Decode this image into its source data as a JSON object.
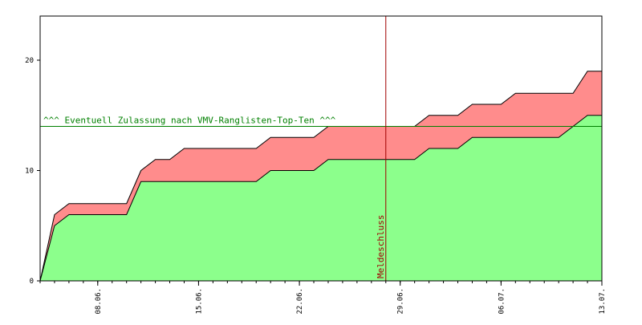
{
  "chart_data": {
    "type": "area",
    "stacked": true,
    "grid": false,
    "x_axis": {
      "start": "2022-06-04",
      "end": "2022-07-13",
      "tick_labels": [
        "08.06.",
        "15.06.",
        "22.06.",
        "29.06.",
        "06.07.",
        "13.07."
      ],
      "tick_dates": [
        "2022-06-08",
        "2022-06-15",
        "2022-06-22",
        "2022-06-29",
        "2022-07-06",
        "2022-07-13"
      ]
    },
    "y_axis": {
      "min": 0,
      "max": 24,
      "tick_labels": [
        "0",
        "10",
        "20"
      ],
      "tick_values": [
        0,
        10,
        20
      ]
    },
    "series": [
      {
        "color": "#8cff8c",
        "points": [
          [
            "2022-06-04",
            0
          ],
          [
            "2022-06-05",
            5
          ],
          [
            "2022-06-06",
            6
          ],
          [
            "2022-06-07",
            6
          ],
          [
            "2022-06-08",
            6
          ],
          [
            "2022-06-09",
            6
          ],
          [
            "2022-06-10",
            6
          ],
          [
            "2022-06-11",
            9
          ],
          [
            "2022-06-12",
            9
          ],
          [
            "2022-06-13",
            9
          ],
          [
            "2022-06-14",
            9
          ],
          [
            "2022-06-15",
            9
          ],
          [
            "2022-06-16",
            9
          ],
          [
            "2022-06-17",
            9
          ],
          [
            "2022-06-18",
            9
          ],
          [
            "2022-06-19",
            9
          ],
          [
            "2022-06-20",
            10
          ],
          [
            "2022-06-21",
            10
          ],
          [
            "2022-06-22",
            10
          ],
          [
            "2022-06-23",
            10
          ],
          [
            "2022-06-24",
            11
          ],
          [
            "2022-06-25",
            11
          ],
          [
            "2022-06-26",
            11
          ],
          [
            "2022-06-27",
            11
          ],
          [
            "2022-06-28",
            11
          ],
          [
            "2022-06-29",
            11
          ],
          [
            "2022-06-30",
            11
          ],
          [
            "2022-07-01",
            12
          ],
          [
            "2022-07-02",
            12
          ],
          [
            "2022-07-03",
            12
          ],
          [
            "2022-07-04",
            13
          ],
          [
            "2022-07-05",
            13
          ],
          [
            "2022-07-06",
            13
          ],
          [
            "2022-07-07",
            13
          ],
          [
            "2022-07-08",
            13
          ],
          [
            "2022-07-09",
            13
          ],
          [
            "2022-07-10",
            13
          ],
          [
            "2022-07-11",
            14
          ],
          [
            "2022-07-12",
            15
          ],
          [
            "2022-07-13",
            15
          ]
        ]
      },
      {
        "color": "#ff8c8c",
        "points": [
          [
            "2022-06-04",
            0
          ],
          [
            "2022-06-05",
            6
          ],
          [
            "2022-06-06",
            7
          ],
          [
            "2022-06-07",
            7
          ],
          [
            "2022-06-08",
            7
          ],
          [
            "2022-06-09",
            7
          ],
          [
            "2022-06-10",
            7
          ],
          [
            "2022-06-11",
            10
          ],
          [
            "2022-06-12",
            11
          ],
          [
            "2022-06-13",
            11
          ],
          [
            "2022-06-14",
            12
          ],
          [
            "2022-06-15",
            12
          ],
          [
            "2022-06-16",
            12
          ],
          [
            "2022-06-17",
            12
          ],
          [
            "2022-06-18",
            12
          ],
          [
            "2022-06-19",
            12
          ],
          [
            "2022-06-20",
            13
          ],
          [
            "2022-06-21",
            13
          ],
          [
            "2022-06-22",
            13
          ],
          [
            "2022-06-23",
            13
          ],
          [
            "2022-06-24",
            14
          ],
          [
            "2022-06-25",
            14
          ],
          [
            "2022-06-26",
            14
          ],
          [
            "2022-06-27",
            14
          ],
          [
            "2022-06-28",
            14
          ],
          [
            "2022-06-29",
            14
          ],
          [
            "2022-06-30",
            14
          ],
          [
            "2022-07-01",
            15
          ],
          [
            "2022-07-02",
            15
          ],
          [
            "2022-07-03",
            15
          ],
          [
            "2022-07-04",
            16
          ],
          [
            "2022-07-05",
            16
          ],
          [
            "2022-07-06",
            16
          ],
          [
            "2022-07-07",
            17
          ],
          [
            "2022-07-08",
            17
          ],
          [
            "2022-07-09",
            17
          ],
          [
            "2022-07-10",
            17
          ],
          [
            "2022-07-11",
            17
          ],
          [
            "2022-07-12",
            19
          ],
          [
            "2022-07-13",
            19
          ]
        ]
      }
    ],
    "reference_lines": [
      {
        "orientation": "horizontal",
        "value": 14,
        "label": "^^^ Eventuell Zulassung nach VMV-Ranglisten-Top-Ten ^^^",
        "color": "#008000"
      },
      {
        "orientation": "vertical",
        "value": "2022-06-28",
        "label": "Meldeschluss",
        "color": "#a00000"
      }
    ]
  }
}
